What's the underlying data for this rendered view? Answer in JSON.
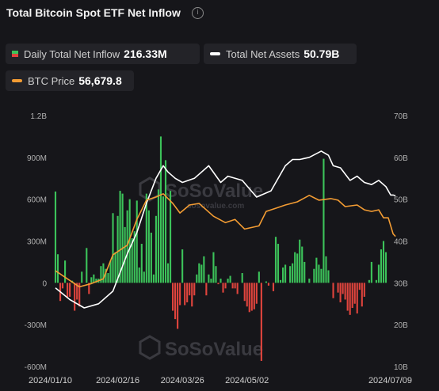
{
  "header": {
    "title": "Total Bitcoin Spot ETF Net Inflow",
    "info_icon": "i"
  },
  "legend": {
    "inflow_label": "Daily Total Net Inflow",
    "inflow_value": "216.33M",
    "assets_label": "Total Net Assets",
    "assets_value": "50.79B",
    "btc_label": "BTC Price",
    "btc_value": "56,679.8"
  },
  "watermark": {
    "brand": "SoSoValue",
    "url": "sosovalue.com"
  },
  "colors": {
    "positive": "#3cc35a",
    "negative": "#e0443d",
    "assets_line": "#ffffff",
    "btc_line": "#f39c33",
    "background": "#16161a"
  },
  "chart_data": {
    "type": "bar+line",
    "left_axis": {
      "ticks": [
        "1.2B",
        "900M",
        "600M",
        "300M",
        "0",
        "-300M",
        "-600M"
      ],
      "ylim": [
        -600,
        1200
      ],
      "unit": "M"
    },
    "right_axis": {
      "ticks": [
        "70B",
        "60B",
        "50B",
        "40B",
        "30B",
        "20B",
        "10B"
      ],
      "ylim": [
        10,
        70
      ],
      "unit": "B"
    },
    "x_tick_labels": [
      "2024/01/10",
      "2024/02/16",
      "2024/03/26",
      "2024/05/02",
      "2024/07/09"
    ],
    "x_tick_index": [
      0,
      26,
      53,
      80,
      126
    ],
    "series": [
      {
        "name": "Daily Total Net Inflow",
        "type": "bar",
        "unit": "M",
        "values": [
          655,
          205,
          -130,
          -40,
          160,
          -105,
          -100,
          15,
          -200,
          -120,
          -170,
          80,
          0,
          250,
          -80,
          40,
          60,
          30,
          30,
          120,
          140,
          100,
          70,
          160,
          500,
          220,
          480,
          660,
          640,
          400,
          520,
          600,
          320,
          370,
          590,
          110,
          280,
          80,
          640,
          520,
          360,
          60,
          480,
          670,
          1050,
          620,
          880,
          140,
          660,
          -200,
          -260,
          -330,
          -160,
          240,
          -160,
          -140,
          -90,
          -170,
          -90,
          60,
          140,
          130,
          190,
          -90,
          60,
          30,
          220,
          120,
          -10,
          30,
          -70,
          -40,
          30,
          50,
          -40,
          -40,
          -80,
          0,
          70,
          -130,
          -170,
          -210,
          -200,
          -190,
          -150,
          80,
          -560,
          0,
          10,
          -20,
          0,
          -60,
          330,
          280,
          20,
          110,
          130,
          0,
          120,
          140,
          220,
          210,
          310,
          260,
          150,
          0,
          30,
          0,
          100,
          180,
          130,
          100,
          890,
          190,
          90,
          0,
          -110,
          0,
          -70,
          -140,
          -80,
          -120,
          -200,
          -230,
          -180,
          -150,
          -220,
          -50,
          -170,
          -100,
          0,
          20,
          150,
          0,
          20,
          130,
          240,
          300,
          220
        ]
      },
      {
        "name": "Total Net Assets",
        "type": "line",
        "unit": "B",
        "x": [
          0,
          6,
          12,
          18,
          24,
          30,
          34,
          38,
          42,
          45,
          47,
          50,
          53,
          58,
          64,
          69,
          72,
          78,
          84,
          90,
          96,
          99,
          102,
          106,
          111,
          114,
          116,
          119,
          123,
          126,
          129,
          132,
          135,
          138,
          140,
          141,
          142
        ],
        "values": [
          28.8,
          26.0,
          24.0,
          25.0,
          28.0,
          37.0,
          42.0,
          49.0,
          55.0,
          58.0,
          56.5,
          55.0,
          54.0,
          55.0,
          58.0,
          54.0,
          55.5,
          54.5,
          50.5,
          52.0,
          58.0,
          59.5,
          59.5,
          60.0,
          61.5,
          60.5,
          58.0,
          57.5,
          54.5,
          55.5,
          54.0,
          53.5,
          54.5,
          53.0,
          51.0,
          51.0,
          50.8
        ]
      },
      {
        "name": "BTC Price",
        "type": "line",
        "x": [
          0,
          5,
          10,
          15,
          20,
          24,
          30,
          34,
          38,
          42,
          45,
          49,
          52,
          56,
          60,
          66,
          71,
          75,
          79,
          85,
          88,
          92,
          96,
          101,
          106,
          110,
          115,
          118,
          121,
          126,
          129,
          132,
          135,
          137,
          139,
          141,
          142
        ],
        "values": [
          46000,
          43500,
          41000,
          42000,
          43500,
          51000,
          54000,
          62000,
          68000,
          69000,
          70000,
          67000,
          64000,
          66500,
          67000,
          63000,
          61000,
          62000,
          59000,
          60000,
          64500,
          65500,
          66500,
          67500,
          69500,
          68000,
          68500,
          68000,
          66000,
          66500,
          65000,
          64500,
          65000,
          62500,
          62500,
          57500,
          56700
        ]
      }
    ],
    "grid": false
  }
}
